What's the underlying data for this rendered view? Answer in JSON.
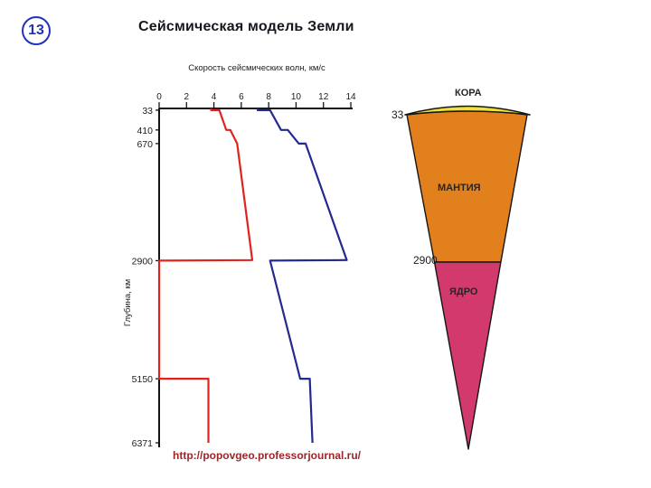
{
  "slide": {
    "page_number": "13",
    "title": "Сейсмическая модель Земли",
    "source_url": "http://popovgeo.professorjournal.ru/"
  },
  "colors": {
    "badge_blue": "#2233bb",
    "title_text": "#17171f",
    "url_red": "#9e2428",
    "axis_black": "#141414"
  },
  "chart_data": {
    "type": "line",
    "title": "Скорость сейсмических волн, км/с",
    "ylabel": "Глубина, км",
    "xlim": [
      0,
      14
    ],
    "ylim": [
      0,
      6371
    ],
    "x_ticks": [
      0,
      2,
      4,
      6,
      8,
      10,
      12,
      14
    ],
    "depth_ticks": [
      33,
      410,
      670,
      2900,
      5150,
      6371
    ],
    "x_axis_position": "top",
    "y_axis_direction": "depth increases downward",
    "grid": false,
    "legend": "none",
    "series": [
      {
        "name": "s-wave-red",
        "color": "#e0231d",
        "points_velocity_depth": [
          [
            3.8,
            0
          ],
          [
            3.8,
            33
          ],
          [
            4.4,
            33
          ],
          [
            4.9,
            410
          ],
          [
            5.2,
            410
          ],
          [
            5.7,
            670
          ],
          [
            6.8,
            2890
          ],
          [
            0,
            2900
          ],
          [
            0,
            5150
          ],
          [
            3.6,
            5150
          ],
          [
            3.6,
            6371
          ]
        ]
      },
      {
        "name": "p-wave-blue",
        "color": "#232a8f",
        "points_velocity_depth": [
          [
            7.2,
            0
          ],
          [
            7.2,
            33
          ],
          [
            8.1,
            33
          ],
          [
            8.9,
            410
          ],
          [
            9.4,
            410
          ],
          [
            10.2,
            670
          ],
          [
            10.7,
            670
          ],
          [
            13.7,
            2890
          ],
          [
            8.1,
            2900
          ],
          [
            10.3,
            5150
          ],
          [
            11.0,
            5150
          ],
          [
            11.2,
            6371
          ]
        ]
      }
    ]
  },
  "wedge": {
    "labels": {
      "crust": "КОРА",
      "mantle": "МАНТИЯ",
      "core": "ЯДРО"
    },
    "depth_marks": [
      "33",
      "2900"
    ],
    "colors": {
      "crust": "#f0e03c",
      "mantle": "#e2801d",
      "core": "#d23a6e",
      "outline": "#161616"
    }
  }
}
